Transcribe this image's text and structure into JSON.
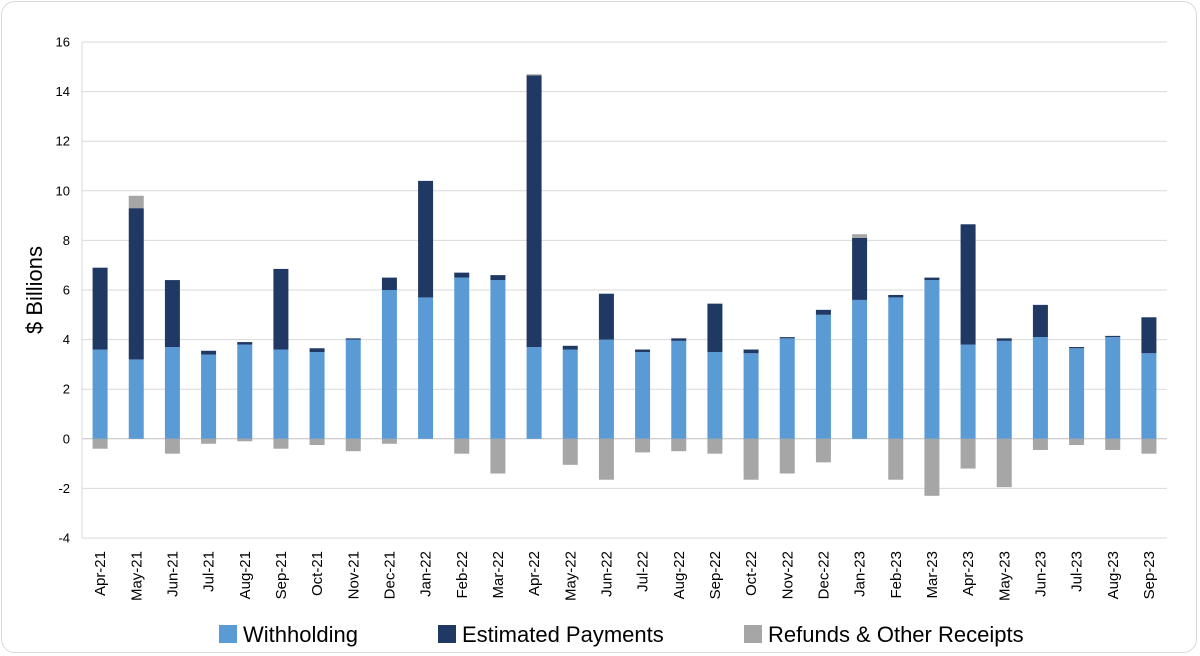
{
  "chart_data": {
    "type": "bar",
    "stacked": true,
    "ylabel": "$ Billions",
    "xlabel": "",
    "ylim": [
      -4,
      16
    ],
    "yticks": [
      -4,
      -2,
      0,
      2,
      4,
      6,
      8,
      10,
      12,
      14,
      16
    ],
    "grid": true,
    "legend_position": "bottom",
    "categories": [
      "Apr-21",
      "May-21",
      "Jun-21",
      "Jul-21",
      "Aug-21",
      "Sep-21",
      "Oct-21",
      "Nov-21",
      "Dec-21",
      "Jan-22",
      "Feb-22",
      "Mar-22",
      "Apr-22",
      "May-22",
      "Jun-22",
      "Jul-22",
      "Aug-22",
      "Sep-22",
      "Oct-22",
      "Nov-22",
      "Dec-22",
      "Jan-23",
      "Feb-23",
      "Mar-23",
      "Apr-23",
      "May-23",
      "Jun-23",
      "Jul-23",
      "Aug-23",
      "Sep-23"
    ],
    "series": [
      {
        "name": "Withholding",
        "color": "#5b9bd5",
        "values": [
          3.6,
          3.2,
          3.7,
          3.4,
          3.8,
          3.6,
          3.5,
          4.0,
          6.0,
          5.7,
          6.5,
          6.4,
          3.7,
          3.6,
          4.0,
          3.5,
          3.95,
          3.5,
          3.45,
          4.05,
          5.0,
          5.6,
          5.7,
          6.4,
          3.8,
          3.95,
          4.1,
          3.65,
          4.1,
          3.45
        ]
      },
      {
        "name": "Estimated Payments",
        "color": "#1f3864",
        "values": [
          3.3,
          6.1,
          2.7,
          0.15,
          0.1,
          3.25,
          0.15,
          0.05,
          0.5,
          4.7,
          0.2,
          0.2,
          10.95,
          0.15,
          1.85,
          0.1,
          0.1,
          1.95,
          0.15,
          0.05,
          0.2,
          2.5,
          0.1,
          0.1,
          4.85,
          0.1,
          1.3,
          0.05,
          0.05,
          1.45
        ]
      },
      {
        "name": "Refunds & Other Receipts",
        "color": "#a6a6a6",
        "values": [
          -0.4,
          0.5,
          -0.6,
          -0.2,
          -0.1,
          -0.4,
          -0.25,
          -0.5,
          -0.2,
          0,
          -0.6,
          -1.4,
          0.05,
          -1.05,
          -1.65,
          -0.55,
          -0.5,
          -0.6,
          -1.65,
          -1.4,
          -0.95,
          0.15,
          -1.65,
          -2.3,
          -1.2,
          -1.95,
          -0.45,
          -0.25,
          -0.45,
          -0.6
        ]
      }
    ]
  }
}
